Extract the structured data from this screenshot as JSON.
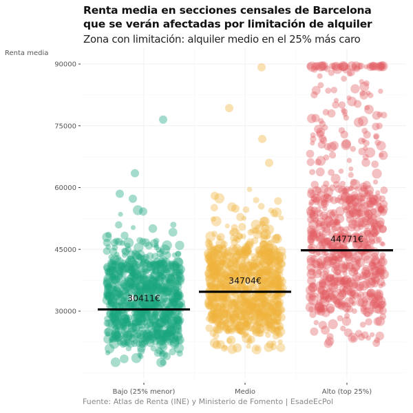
{
  "chart_data": {
    "type": "scatter",
    "subtype": "jittered strip plot with mean lines",
    "title": "Renta media en secciones censales de Barcelona que se verán afectadas por limitación de alquiler",
    "title_lines": [
      "Renta media en secciones censales de Barcelona",
      "que se verán afectadas por limitación de alquiler"
    ],
    "subtitle": "Zona con limitación: alquiler medio en el 25% más caro",
    "ylabel": "Renta media",
    "xlabel": "",
    "caption": "Fuente: Atlas de Renta (INE) y Ministerio de Fomento | EsadeEcPol",
    "ylim": [
      14000,
      92500
    ],
    "yticks": [
      30000,
      45000,
      60000,
      75000,
      90000
    ],
    "ytick_labels": [
      "30000",
      "45000",
      "60000",
      "75000",
      "90000"
    ],
    "grid": true,
    "legend": "none",
    "categories": [
      "Bajo (25% menor)",
      "Medio",
      "Alto (top 25%)"
    ],
    "series": [
      {
        "name": "Bajo (25% menor)",
        "color": "#1aa67f",
        "mean": 30411,
        "mean_label": "30411€",
        "range_approx": [
          17500,
          76500
        ],
        "bulk_range_approx": [
          22000,
          42000
        ],
        "n_approx": 800
      },
      {
        "name": "Medio",
        "color": "#f0b43c",
        "mean": 34704,
        "mean_label": "34704€",
        "range_approx": [
          20500,
          89500
        ],
        "bulk_range_approx": [
          25000,
          45000
        ],
        "n_approx": 800
      },
      {
        "name": "Alto (top 25%)",
        "color": "#e35c62",
        "mean": 44771,
        "mean_label": "44771€",
        "range_approx": [
          22000,
          89500
        ],
        "bulk_range_approx": [
          30000,
          60000
        ],
        "n_approx": 700
      }
    ]
  }
}
